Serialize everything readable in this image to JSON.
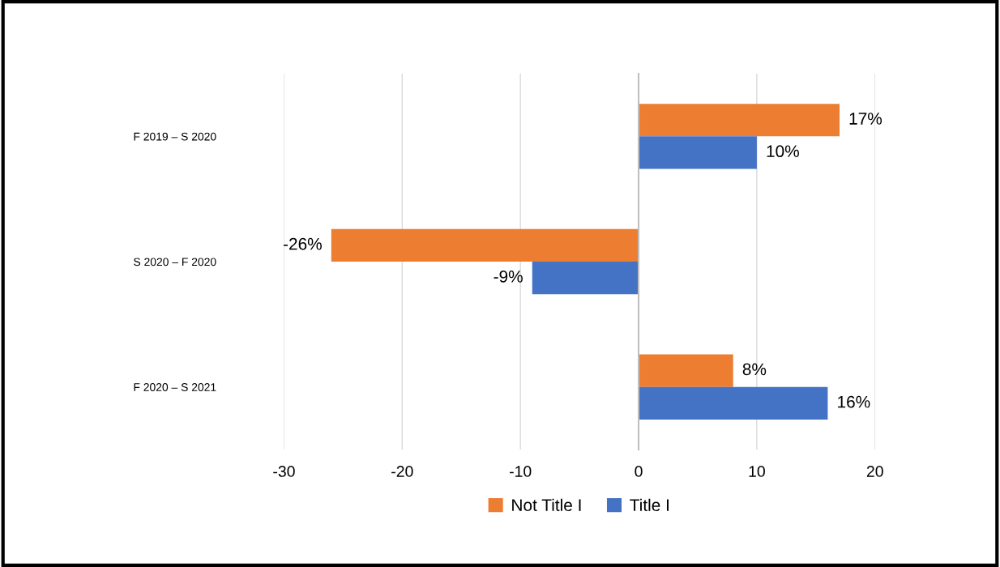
{
  "chart_data": {
    "type": "bar",
    "orientation": "horizontal",
    "categories": [
      "F 2019 – S 2020",
      "S 2020 – F 2020",
      "F 2020 – S 2021"
    ],
    "series": [
      {
        "name": "Not Title I",
        "color": "#ed7d31",
        "values": [
          17,
          -26,
          8
        ],
        "value_labels": [
          "17%",
          "-26%",
          "8%"
        ]
      },
      {
        "name": "Title I",
        "color": "#4472c4",
        "values": [
          10,
          -9,
          16
        ],
        "value_labels": [
          "10%",
          "-9%",
          "16%"
        ]
      }
    ],
    "xlim": [
      -30,
      20
    ],
    "xticks": [
      -30,
      -20,
      -10,
      0,
      10,
      20
    ],
    "grid": "x",
    "legend": "bottom"
  }
}
